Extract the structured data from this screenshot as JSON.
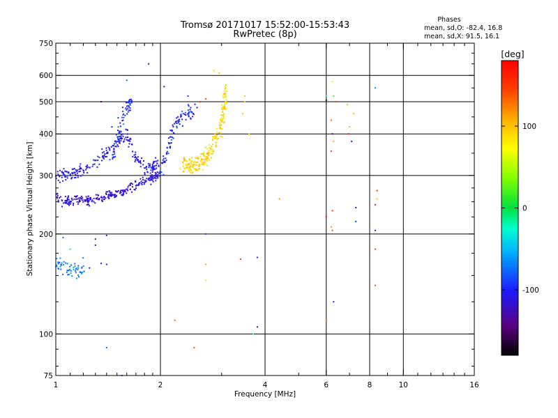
{
  "chart_data": {
    "type": "scatter",
    "title": "Tromsø 20171017 15:52:00-15:53:43",
    "subtitle": "RwPretec (8p)",
    "xlabel": "Frequency [MHz]",
    "ylabel": "Stationary phase Virtual Height [km]",
    "xscale": "log",
    "yscale": "log",
    "xlim": [
      1,
      16
    ],
    "ylim": [
      75,
      750
    ],
    "xticks": [
      1,
      2,
      4,
      6,
      8,
      10,
      16
    ],
    "xtick_labels": [
      "1",
      "2",
      "4",
      "6",
      "8",
      "10",
      "16"
    ],
    "yticks": [
      75,
      100,
      200,
      300,
      400,
      500,
      600,
      750
    ],
    "ytick_labels": [
      "75",
      "100",
      "200",
      "300",
      "400",
      "500",
      "600",
      "750"
    ],
    "grid": true,
    "stats": {
      "heading": "Phases",
      "line_o": "mean, sd,O: -82.4, 16.8",
      "line_x": "mean, sd,X:  91.5, 16.1"
    },
    "colorbar": {
      "label": "[deg]",
      "min": -180,
      "max": 180,
      "ticks": [
        100,
        0,
        -100
      ],
      "tick_labels": [
        "100",
        "0",
        "-100"
      ]
    },
    "traces": [
      {
        "name": "lower-O-trace",
        "x": [
          1.0,
          1.05,
          1.1,
          1.2,
          1.3,
          1.4,
          1.5,
          1.6,
          1.7,
          1.8,
          1.9,
          1.97
        ],
        "y": [
          260,
          252,
          250,
          252,
          255,
          260,
          265,
          272,
          280,
          288,
          295,
          303
        ],
        "phase_mean": -115,
        "phase_sd": 12,
        "jitter": 0.03,
        "count": 260
      },
      {
        "name": "upper-O-trace",
        "x": [
          1.0,
          1.05,
          1.1,
          1.15,
          1.2,
          1.3,
          1.4,
          1.5,
          1.6,
          1.7,
          1.8,
          1.9,
          1.97
        ],
        "y": [
          305,
          300,
          303,
          308,
          315,
          330,
          350,
          378,
          400,
          340,
          320,
          318,
          325
        ],
        "phase_mean": -108,
        "phase_sd": 14,
        "jitter": 0.04,
        "count": 230
      },
      {
        "name": "O-cusp-trace",
        "x": [
          1.45,
          1.5,
          1.55,
          1.6,
          1.65
        ],
        "y": [
          330,
          380,
          440,
          480,
          500
        ],
        "phase_mean": -95,
        "phase_sd": 22,
        "jitter": 0.05,
        "count": 70
      },
      {
        "name": "F2-O-trace",
        "x": [
          2.0,
          2.05,
          2.1,
          2.15,
          2.2,
          2.3,
          2.4,
          2.5
        ],
        "y": [
          310,
          330,
          360,
          390,
          420,
          450,
          470,
          460
        ],
        "phase_mean": -100,
        "phase_sd": 22,
        "jitter": 0.05,
        "count": 90
      },
      {
        "name": "X-trace",
        "x": [
          2.3,
          2.4,
          2.5,
          2.6,
          2.7,
          2.8,
          2.9,
          3.0,
          3.05,
          3.1
        ],
        "y": [
          318,
          318,
          320,
          328,
          340,
          360,
          390,
          430,
          480,
          550
        ],
        "phase_mean": 92,
        "phase_sd": 14,
        "jitter": 0.05,
        "count": 230
      },
      {
        "name": "low-height-echoes",
        "x": [
          1.0,
          1.05,
          1.1,
          1.15,
          1.2
        ],
        "y": [
          165,
          158,
          156,
          155,
          156
        ],
        "phase_mean": -70,
        "phase_sd": 18,
        "jitter": 0.05,
        "count": 60
      }
    ],
    "points": [
      {
        "x": 1.85,
        "y": 650,
        "phase": -140
      },
      {
        "x": 2.05,
        "y": 555,
        "phase": -110
      },
      {
        "x": 1.35,
        "y": 500,
        "phase": -150
      },
      {
        "x": 1.6,
        "y": 580,
        "phase": -80
      },
      {
        "x": 6.0,
        "y": 505,
        "phase": -160
      },
      {
        "x": 6.0,
        "y": 520,
        "phase": -30
      },
      {
        "x": 6.25,
        "y": 575,
        "phase": 80
      },
      {
        "x": 6.3,
        "y": 520,
        "phase": 20
      },
      {
        "x": 6.4,
        "y": 500,
        "phase": 150
      },
      {
        "x": 6.9,
        "y": 490,
        "phase": 100
      },
      {
        "x": 7.2,
        "y": 460,
        "phase": 110
      },
      {
        "x": 8.3,
        "y": 550,
        "phase": -60
      },
      {
        "x": 6.2,
        "y": 440,
        "phase": 130
      },
      {
        "x": 6.25,
        "y": 400,
        "phase": -140
      },
      {
        "x": 6.3,
        "y": 380,
        "phase": 110
      },
      {
        "x": 6.2,
        "y": 355,
        "phase": 150
      },
      {
        "x": 6.95,
        "y": 400,
        "phase": 160
      },
      {
        "x": 7.1,
        "y": 380,
        "phase": -110
      },
      {
        "x": 7.0,
        "y": 420,
        "phase": 105
      },
      {
        "x": 8.4,
        "y": 270,
        "phase": 160
      },
      {
        "x": 8.4,
        "y": 255,
        "phase": 100
      },
      {
        "x": 8.3,
        "y": 245,
        "phase": 170
      },
      {
        "x": 6.0,
        "y": 225,
        "phase": 175
      },
      {
        "x": 6.25,
        "y": 235,
        "phase": 150
      },
      {
        "x": 6.2,
        "y": 210,
        "phase": 120
      },
      {
        "x": 6.25,
        "y": 205,
        "phase": 140
      },
      {
        "x": 7.3,
        "y": 240,
        "phase": -130
      },
      {
        "x": 7.3,
        "y": 218,
        "phase": -90
      },
      {
        "x": 8.3,
        "y": 205,
        "phase": -130
      },
      {
        "x": 8.3,
        "y": 180,
        "phase": 140
      },
      {
        "x": 8.3,
        "y": 140,
        "phase": 140
      },
      {
        "x": 6.3,
        "y": 125,
        "phase": -120
      },
      {
        "x": 6.0,
        "y": 110,
        "phase": 130
      },
      {
        "x": 4.4,
        "y": 255,
        "phase": 120
      },
      {
        "x": 3.8,
        "y": 170,
        "phase": -100
      },
      {
        "x": 3.8,
        "y": 105,
        "phase": -130
      },
      {
        "x": 3.4,
        "y": 168,
        "phase": 150
      },
      {
        "x": 3.7,
        "y": 100,
        "phase": -30
      },
      {
        "x": 2.7,
        "y": 200,
        "phase": -90
      },
      {
        "x": 2.7,
        "y": 162,
        "phase": 110
      },
      {
        "x": 2.7,
        "y": 145,
        "phase": 60
      },
      {
        "x": 2.2,
        "y": 110,
        "phase": 130
      },
      {
        "x": 2.5,
        "y": 91,
        "phase": 140
      },
      {
        "x": 1.4,
        "y": 91,
        "phase": -80
      },
      {
        "x": 1.55,
        "y": 75,
        "phase": -70
      },
      {
        "x": 1.4,
        "y": 198,
        "phase": -120
      },
      {
        "x": 1.3,
        "y": 193,
        "phase": -140
      },
      {
        "x": 1.3,
        "y": 185,
        "phase": -130
      },
      {
        "x": 1.35,
        "y": 163,
        "phase": -120
      },
      {
        "x": 1.4,
        "y": 162,
        "phase": -125
      },
      {
        "x": 1.25,
        "y": 158,
        "phase": -110
      },
      {
        "x": 1.45,
        "y": 420,
        "phase": -100
      },
      {
        "x": 3.5,
        "y": 520,
        "phase": 100
      },
      {
        "x": 3.5,
        "y": 500,
        "phase": 90
      },
      {
        "x": 3.45,
        "y": 460,
        "phase": 95
      },
      {
        "x": 3.6,
        "y": 400,
        "phase": 85
      },
      {
        "x": 2.85,
        "y": 620,
        "phase": 90
      },
      {
        "x": 2.95,
        "y": 610,
        "phase": 95
      },
      {
        "x": 2.6,
        "y": 500,
        "phase": 150
      },
      {
        "x": 2.7,
        "y": 510,
        "phase": 140
      },
      {
        "x": 2.55,
        "y": 480,
        "phase": -130
      },
      {
        "x": 2.4,
        "y": 520,
        "phase": -100
      },
      {
        "x": 1.05,
        "y": 195,
        "phase": -80
      },
      {
        "x": 1.1,
        "y": 180,
        "phase": -20
      }
    ]
  }
}
